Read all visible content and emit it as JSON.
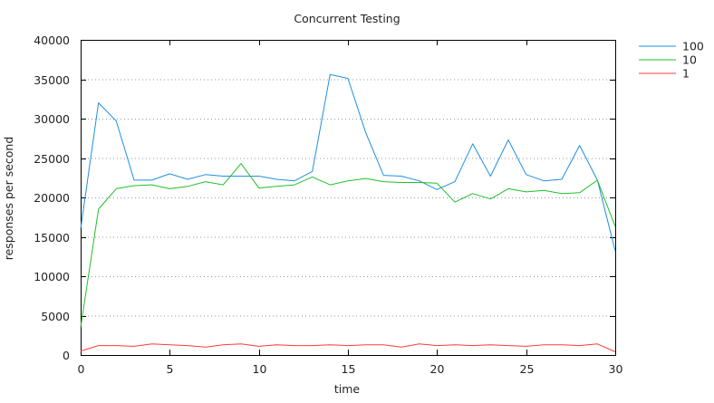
{
  "chart_data": {
    "type": "line",
    "title": "Concurrent Testing",
    "xlabel": "time",
    "ylabel": "responses per second",
    "xlim": [
      0,
      30
    ],
    "ylim": [
      0,
      40000
    ],
    "x_ticks": [
      0,
      5,
      10,
      15,
      20,
      25,
      30
    ],
    "y_ticks": [
      0,
      5000,
      10000,
      15000,
      20000,
      25000,
      30000,
      35000,
      40000
    ],
    "grid": "horizontal dotted",
    "legend_position": "top-right outside",
    "x": [
      0,
      1,
      2,
      3,
      4,
      5,
      6,
      7,
      8,
      9,
      10,
      11,
      12,
      13,
      14,
      15,
      16,
      17,
      18,
      19,
      20,
      21,
      22,
      23,
      24,
      25,
      26,
      27,
      28,
      29,
      30
    ],
    "series": [
      {
        "name": "100",
        "color": "#1f8fe0",
        "values": [
          16000,
          32000,
          29700,
          22200,
          22200,
          23000,
          22300,
          22900,
          22700,
          22700,
          22700,
          22300,
          22100,
          23300,
          35600,
          35100,
          28200,
          22800,
          22700,
          22100,
          21000,
          22000,
          26800,
          22700,
          27300,
          22900,
          22100,
          22300,
          26600,
          22200,
          13200
        ]
      },
      {
        "name": "10",
        "color": "#22c02a",
        "values": [
          3500,
          18500,
          21100,
          21500,
          21600,
          21100,
          21400,
          22000,
          21600,
          24300,
          21200,
          21400,
          21600,
          22600,
          21600,
          22100,
          22400,
          22000,
          21900,
          21900,
          21800,
          19400,
          20500,
          19800,
          21100,
          20700,
          20900,
          20500,
          20600,
          22200,
          16300
        ]
      },
      {
        "name": "1",
        "color": "#ff3b3b",
        "values": [
          500,
          1200,
          1200,
          1100,
          1400,
          1300,
          1200,
          1000,
          1300,
          1400,
          1100,
          1300,
          1200,
          1200,
          1300,
          1200,
          1300,
          1300,
          1000,
          1400,
          1200,
          1300,
          1200,
          1300,
          1200,
          1100,
          1300,
          1300,
          1200,
          1400,
          400
        ]
      }
    ]
  }
}
